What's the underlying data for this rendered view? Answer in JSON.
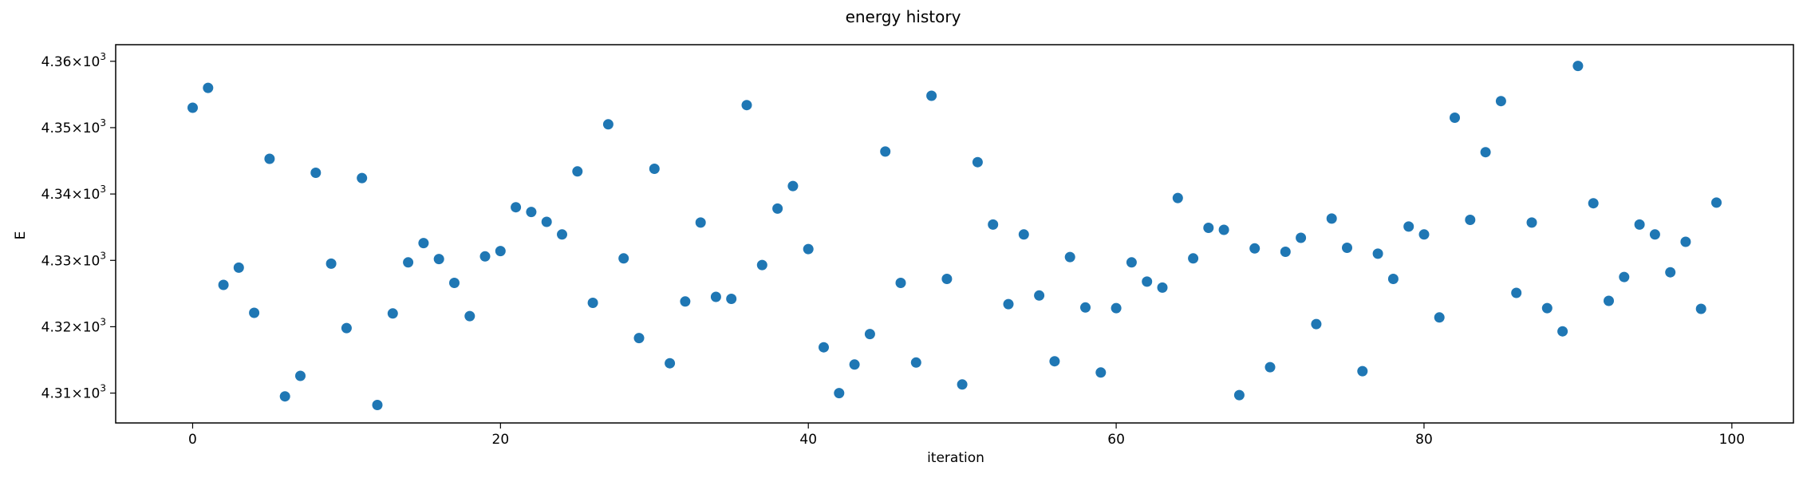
{
  "chart_data": {
    "type": "scatter",
    "title": "energy history",
    "xlabel": "iteration",
    "ylabel": "E",
    "xlim": [
      -5,
      104
    ],
    "ylim": [
      4305.5,
      4362.5
    ],
    "grid": false,
    "marker_color": "#1f77b4",
    "x_ticks": [
      {
        "value": 0,
        "label": "0"
      },
      {
        "value": 20,
        "label": "20"
      },
      {
        "value": 40,
        "label": "40"
      },
      {
        "value": 60,
        "label": "60"
      },
      {
        "value": 80,
        "label": "80"
      },
      {
        "value": 100,
        "label": "100"
      }
    ],
    "y_ticks": [
      {
        "value": 4310,
        "mantissa": "4.31",
        "label": "4.31 × 10³"
      },
      {
        "value": 4320,
        "mantissa": "4.32",
        "label": "4.32 × 10³"
      },
      {
        "value": 4330,
        "mantissa": "4.33",
        "label": "4.33 × 10³"
      },
      {
        "value": 4340,
        "mantissa": "4.34",
        "label": "4.34 × 10³"
      },
      {
        "value": 4350,
        "mantissa": "4.35",
        "label": "4.35 × 10³"
      },
      {
        "value": 4360,
        "mantissa": "4.36",
        "label": "4.36 × 10³"
      }
    ],
    "y_tick_multiplier": "×10",
    "y_tick_exponent": "3",
    "x": [
      0,
      1,
      2,
      3,
      4,
      5,
      6,
      7,
      8,
      9,
      10,
      11,
      12,
      13,
      14,
      15,
      16,
      17,
      18,
      19,
      20,
      21,
      22,
      23,
      24,
      25,
      26,
      27,
      28,
      29,
      30,
      31,
      32,
      33,
      34,
      35,
      36,
      37,
      38,
      39,
      40,
      41,
      42,
      43,
      44,
      45,
      46,
      47,
      48,
      49,
      50,
      51,
      52,
      53,
      54,
      55,
      56,
      57,
      58,
      59,
      60,
      61,
      62,
      63,
      64,
      65,
      66,
      67,
      68,
      69,
      70,
      71,
      72,
      73,
      74,
      75,
      76,
      77,
      78,
      79,
      80,
      81,
      82,
      83,
      84,
      85,
      86,
      87,
      88,
      89,
      90,
      91,
      92,
      93,
      94,
      95,
      96,
      97,
      98,
      99
    ],
    "y": [
      4353.0,
      4356.0,
      4326.3,
      4328.9,
      4322.1,
      4345.3,
      4309.5,
      4312.6,
      4343.2,
      4329.5,
      4319.8,
      4342.4,
      4308.2,
      4322.0,
      4329.7,
      4332.6,
      4330.2,
      4326.6,
      4321.6,
      4330.6,
      4331.4,
      4338.0,
      4337.3,
      4335.8,
      4333.9,
      4343.4,
      4323.6,
      4350.5,
      4330.3,
      4318.3,
      4343.8,
      4314.5,
      4323.8,
      4335.7,
      4324.5,
      4324.2,
      4353.4,
      4329.3,
      4337.8,
      4341.2,
      4331.7,
      4316.9,
      4310.0,
      4314.3,
      4318.9,
      4346.4,
      4326.6,
      4314.6,
      4354.8,
      4327.2,
      4311.3,
      4344.8,
      4335.4,
      4323.4,
      4333.9,
      4324.7,
      4314.8,
      4330.5,
      4322.9,
      4313.1,
      4322.8,
      4329.7,
      4326.8,
      4325.9,
      4339.4,
      4330.3,
      4334.9,
      4334.6,
      4309.7,
      4331.8,
      4313.9,
      4331.3,
      4333.4,
      4320.4,
      4336.3,
      4331.9,
      4313.3,
      4331.0,
      4327.2,
      4335.1,
      4333.9,
      4321.4,
      4351.5,
      4336.1,
      4346.3,
      4354.0,
      4325.1,
      4335.7,
      4322.8,
      4319.3,
      4359.3,
      4338.6,
      4323.9,
      4327.5,
      4335.4,
      4333.9,
      4328.2,
      4332.8,
      4322.7,
      4338.7
    ]
  }
}
